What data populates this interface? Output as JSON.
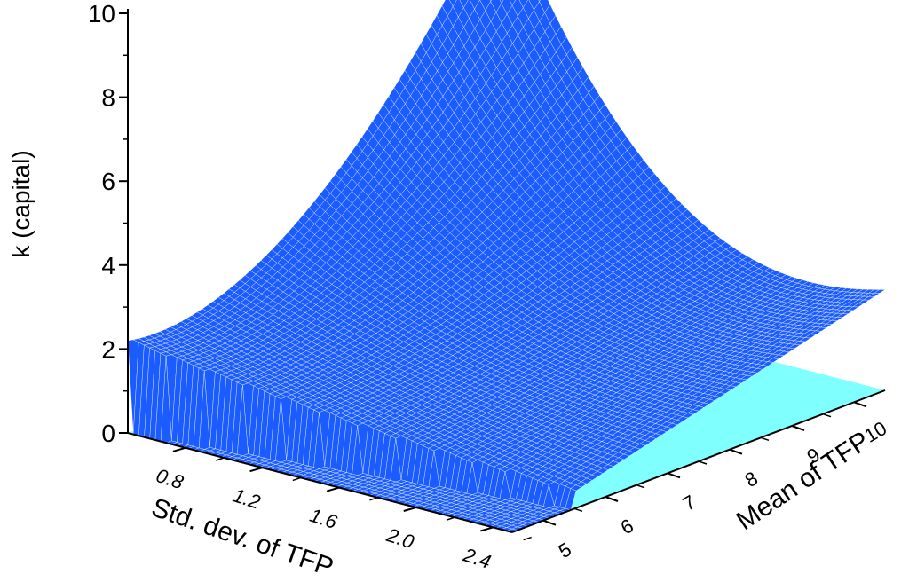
{
  "chart_data": {
    "type": "surface",
    "zlabel": "k (capital)",
    "xlabel": "Std. dev. of TFP",
    "ylabel": "Mean of TFP",
    "z_ticks": [
      "0",
      "2",
      "4",
      "6",
      "8",
      "10"
    ],
    "x_ticks": [
      "0.8",
      "1.2",
      "1.6",
      "2.0",
      "2.4"
    ],
    "y_ticks": [
      "5",
      "6",
      "7",
      "8",
      "9",
      "10"
    ],
    "x_range": [
      0.5,
      2.5
    ],
    "y_range": [
      4.5,
      10.5
    ],
    "z_range": [
      0,
      10
    ],
    "floor_level": 1.6,
    "surface_corners": [
      {
        "std_dev": 0.5,
        "mean": 4.5,
        "k": 2.2
      },
      {
        "std_dev": 0.5,
        "mean": 10.5,
        "k": 9.5
      },
      {
        "std_dev": 2.5,
        "mean": 10.5,
        "k": 2.4
      },
      {
        "std_dev": 2.5,
        "mean": 4.5,
        "k": 0
      }
    ],
    "colors": {
      "floor": "#80ffff",
      "mesh_line": "#ffffff",
      "surface": "#1a5cff",
      "cliff": "#1f3fd8",
      "axes": "#000000"
    }
  }
}
